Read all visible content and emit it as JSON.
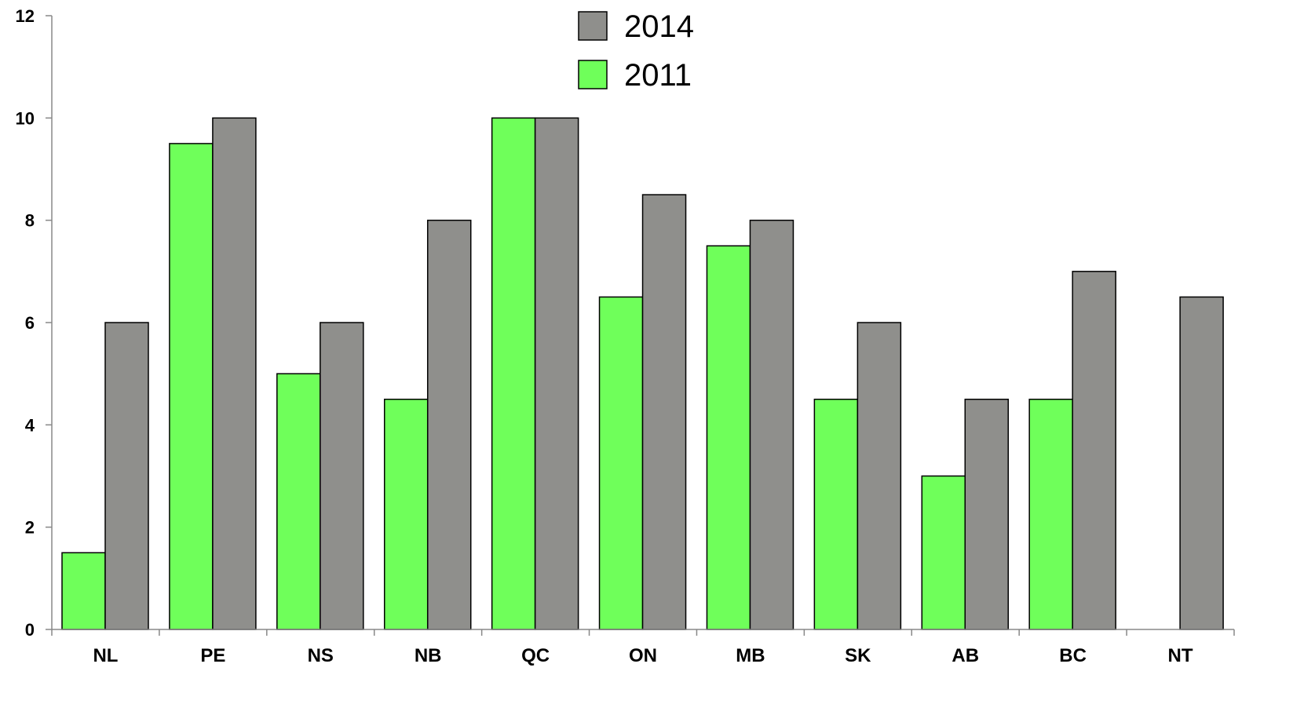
{
  "chart_data": {
    "type": "bar",
    "title": "",
    "xlabel": "",
    "ylabel": "",
    "categories": [
      "NL",
      "PE",
      "NS",
      "NB",
      "QC",
      "ON",
      "MB",
      "SK",
      "AB",
      "BC",
      "NT"
    ],
    "ylim": [
      0,
      12
    ],
    "yticks": [
      "0",
      "2",
      "4",
      "6",
      "8",
      "10",
      "12"
    ],
    "grid": false,
    "legend_position": "top-center",
    "series": [
      {
        "name": "2011",
        "color": "#6fff5a",
        "values": [
          1.5,
          9.5,
          5,
          4.5,
          10,
          6.5,
          7.5,
          4.5,
          3,
          4.5,
          null
        ]
      },
      {
        "name": "2014",
        "color": "#8f8f8c",
        "values": [
          6,
          10,
          6,
          8,
          10,
          8.5,
          8,
          6,
          4.5,
          7,
          6.5
        ]
      }
    ],
    "legend": [
      {
        "label": "2014",
        "color": "#8f8f8c"
      },
      {
        "label": "2011",
        "color": "#6fff5a"
      }
    ]
  }
}
